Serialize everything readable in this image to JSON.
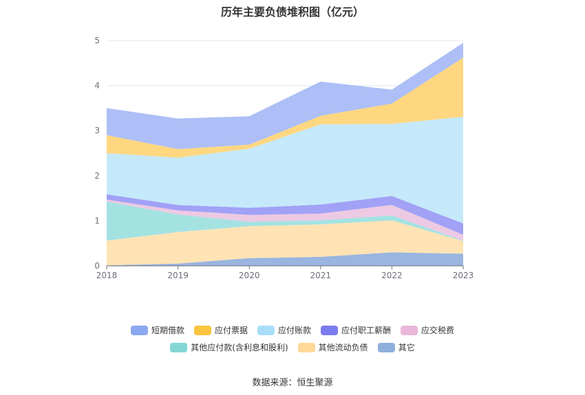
{
  "chart_data": {
    "type": "area",
    "stacked": true,
    "title": "历年主要负债堆积图（亿元）",
    "x": [
      "2018",
      "2019",
      "2020",
      "2021",
      "2022",
      "2023"
    ],
    "ylim": [
      0,
      5
    ],
    "yticks": [
      "0",
      "1",
      "2",
      "3",
      "4",
      "5"
    ],
    "grid": true,
    "legend_position": "bottom",
    "series": [
      {
        "name": "其它",
        "color": "#94b1de",
        "values": [
          0.01,
          0.05,
          0.17,
          0.2,
          0.3,
          0.27
        ]
      },
      {
        "name": "其他流动负债",
        "color": "#ffe2b0",
        "values": [
          0.55,
          0.7,
          0.71,
          0.72,
          0.71,
          0.28
        ]
      },
      {
        "name": "其他应付款(含利息和股利)",
        "color": "#9fe0e0",
        "values": [
          0.87,
          0.39,
          0.1,
          0.09,
          0.11,
          0.01
        ]
      },
      {
        "name": "应交税费",
        "color": "#ecc6e2",
        "values": [
          0.04,
          0.09,
          0.15,
          0.15,
          0.23,
          0.13
        ]
      },
      {
        "name": "应付职工薪酬",
        "color": "#9c9cf5",
        "values": [
          0.12,
          0.12,
          0.16,
          0.2,
          0.2,
          0.25
        ]
      },
      {
        "name": "应付账款",
        "color": "#c2e8fa",
        "values": [
          0.91,
          1.05,
          1.31,
          1.78,
          1.6,
          2.37
        ]
      },
      {
        "name": "应付票据",
        "color": "#ffd57a",
        "values": [
          0.4,
          0.19,
          0.09,
          0.19,
          0.45,
          1.31
        ]
      },
      {
        "name": "短期借款",
        "color": "#a9bcf5",
        "values": [
          0.6,
          0.68,
          0.63,
          0.76,
          0.31,
          0.33
        ]
      }
    ]
  },
  "legend": {
    "row1": [
      {
        "label": "短期借款",
        "color": "#8ca8f0"
      },
      {
        "label": "应付票据",
        "color": "#fcc43e"
      },
      {
        "label": "应付账款",
        "color": "#a9def8"
      },
      {
        "label": "应付职工薪酬",
        "color": "#7b7bf0"
      },
      {
        "label": "应交税费",
        "color": "#e8b7da"
      }
    ],
    "row2": [
      {
        "label": "其他应付款(含利息和股利)",
        "color": "#84d6d6"
      },
      {
        "label": "其他流动负债",
        "color": "#ffd898"
      },
      {
        "label": "其它",
        "color": "#8fb0dc"
      }
    ]
  },
  "source": "数据来源：恒生聚源"
}
